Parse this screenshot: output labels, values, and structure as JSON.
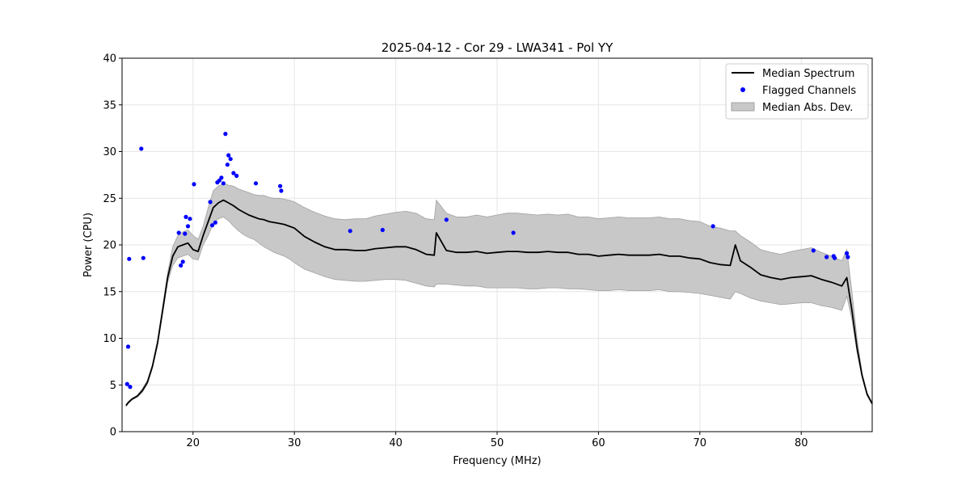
{
  "chart_data": {
    "type": "line",
    "title": "2025-04-12 - Cor 29 - LWA341 - Pol YY",
    "xlabel": "Frequency (MHz)",
    "ylabel": "Power (CPU)",
    "xlim": [
      13,
      87
    ],
    "ylim": [
      0,
      40
    ],
    "xticks": [
      20,
      30,
      40,
      50,
      60,
      70,
      80
    ],
    "yticks": [
      0,
      5,
      10,
      15,
      20,
      25,
      30,
      35,
      40
    ],
    "grid": true,
    "legend_position": "top-right",
    "colors": {
      "median": "#000000",
      "flagged": "#0000ff",
      "mad_fill": "#c8c8c8",
      "mad_edge": "#a0a0a0",
      "grid": "#e6e6e6"
    },
    "series": [
      {
        "name": "Median Spectrum",
        "style": "line",
        "x": [
          13.4,
          13.6,
          13.8,
          14.0,
          14.5,
          15.0,
          15.5,
          16.0,
          16.5,
          17.0,
          17.5,
          18.0,
          18.5,
          19.0,
          19.5,
          20.0,
          20.5,
          21.0,
          21.5,
          22.0,
          22.5,
          23.0,
          23.5,
          24.0,
          24.5,
          25.0,
          25.5,
          26.0,
          26.5,
          27.0,
          27.5,
          28.0,
          28.5,
          29.0,
          29.5,
          30.0,
          31.0,
          32.0,
          33.0,
          34.0,
          35.0,
          36.0,
          37.0,
          38.0,
          39.0,
          40.0,
          41.0,
          42.0,
          43.0,
          43.8,
          44.0,
          45.0,
          46.0,
          47.0,
          48.0,
          49.0,
          50.0,
          51.0,
          52.0,
          53.0,
          54.0,
          55.0,
          56.0,
          57.0,
          58.0,
          59.0,
          60.0,
          61.0,
          62.0,
          63.0,
          64.0,
          65.0,
          66.0,
          67.0,
          68.0,
          69.0,
          70.0,
          71.0,
          72.0,
          73.0,
          73.5,
          74.0,
          75.0,
          76.0,
          77.0,
          78.0,
          79.0,
          80.0,
          81.0,
          82.0,
          83.0,
          84.0,
          84.5,
          85.0,
          85.5,
          86.0,
          86.5,
          87.0
        ],
        "y": [
          2.8,
          3.1,
          3.3,
          3.5,
          3.8,
          4.4,
          5.3,
          7.0,
          9.5,
          13.0,
          16.5,
          18.8,
          19.8,
          20.0,
          20.2,
          19.5,
          19.3,
          21.0,
          22.5,
          24.0,
          24.5,
          24.8,
          24.5,
          24.2,
          23.8,
          23.5,
          23.2,
          23.0,
          22.8,
          22.7,
          22.5,
          22.4,
          22.3,
          22.2,
          22.0,
          21.8,
          20.9,
          20.3,
          19.8,
          19.5,
          19.5,
          19.4,
          19.4,
          19.6,
          19.7,
          19.8,
          19.8,
          19.5,
          19.0,
          18.9,
          21.3,
          19.4,
          19.2,
          19.2,
          19.3,
          19.1,
          19.2,
          19.3,
          19.3,
          19.2,
          19.2,
          19.3,
          19.2,
          19.2,
          19.0,
          19.0,
          18.8,
          18.9,
          19.0,
          18.9,
          18.9,
          18.9,
          19.0,
          18.8,
          18.8,
          18.6,
          18.5,
          18.1,
          17.9,
          17.8,
          20.0,
          18.3,
          17.6,
          16.8,
          16.5,
          16.3,
          16.5,
          16.6,
          16.7,
          16.3,
          16.0,
          15.6,
          16.5,
          13.0,
          9.0,
          6.0,
          4.0,
          3.0
        ]
      },
      {
        "name": "Median Abs. Dev.",
        "style": "band",
        "x": [
          13.4,
          13.6,
          13.8,
          14.0,
          14.5,
          15.0,
          15.5,
          16.0,
          16.5,
          17.0,
          17.5,
          18.0,
          18.5,
          19.0,
          19.5,
          20.0,
          20.5,
          21.0,
          21.5,
          22.0,
          22.5,
          23.0,
          23.5,
          24.0,
          24.5,
          25.0,
          25.5,
          26.0,
          26.5,
          27.0,
          27.5,
          28.0,
          28.5,
          29.0,
          29.5,
          30.0,
          31.0,
          32.0,
          33.0,
          34.0,
          35.0,
          36.0,
          37.0,
          38.0,
          39.0,
          40.0,
          41.0,
          42.0,
          43.0,
          43.8,
          44.0,
          45.0,
          46.0,
          47.0,
          48.0,
          49.0,
          50.0,
          51.0,
          52.0,
          53.0,
          54.0,
          55.0,
          56.0,
          57.0,
          58.0,
          59.0,
          60.0,
          61.0,
          62.0,
          63.0,
          64.0,
          65.0,
          66.0,
          67.0,
          68.0,
          69.0,
          70.0,
          71.0,
          72.0,
          73.0,
          73.5,
          74.0,
          75.0,
          76.0,
          77.0,
          78.0,
          79.0,
          80.0,
          81.0,
          82.0,
          83.0,
          84.0,
          84.5,
          85.0,
          85.5,
          86.0,
          86.5,
          87.0
        ],
        "lower": [
          2.7,
          3.0,
          3.2,
          3.4,
          3.7,
          4.2,
          5.1,
          6.8,
          9.2,
          12.6,
          16.0,
          17.8,
          18.6,
          18.8,
          19.0,
          18.5,
          18.4,
          20.0,
          21.0,
          22.3,
          22.8,
          23.0,
          22.6,
          22.0,
          21.5,
          21.1,
          20.8,
          20.6,
          20.2,
          19.8,
          19.5,
          19.2,
          19.0,
          18.8,
          18.5,
          18.1,
          17.4,
          17.0,
          16.6,
          16.3,
          16.2,
          16.1,
          16.1,
          16.2,
          16.3,
          16.3,
          16.2,
          15.9,
          15.6,
          15.5,
          15.8,
          15.8,
          15.7,
          15.6,
          15.6,
          15.4,
          15.4,
          15.4,
          15.4,
          15.3,
          15.3,
          15.4,
          15.4,
          15.3,
          15.3,
          15.2,
          15.1,
          15.1,
          15.2,
          15.1,
          15.1,
          15.1,
          15.2,
          15.0,
          15.0,
          14.9,
          14.8,
          14.6,
          14.4,
          14.2,
          15.0,
          14.8,
          14.3,
          14.0,
          13.8,
          13.6,
          13.7,
          13.8,
          13.8,
          13.5,
          13.3,
          13.0,
          14.5,
          12.0,
          8.5,
          5.8,
          3.9,
          2.9
        ],
        "upper": [
          2.9,
          3.2,
          3.4,
          3.6,
          3.9,
          4.6,
          5.5,
          7.2,
          9.8,
          13.4,
          17.0,
          19.8,
          21.0,
          21.4,
          21.6,
          21.0,
          20.6,
          22.0,
          24.0,
          25.8,
          26.3,
          26.6,
          26.4,
          26.3,
          26.0,
          25.8,
          25.6,
          25.4,
          25.3,
          25.3,
          25.1,
          25.0,
          25.0,
          24.9,
          24.8,
          24.6,
          24.0,
          23.5,
          23.1,
          22.8,
          22.7,
          22.8,
          22.8,
          23.1,
          23.3,
          23.5,
          23.6,
          23.4,
          22.8,
          22.7,
          24.8,
          23.4,
          23.0,
          23.0,
          23.2,
          23.0,
          23.2,
          23.4,
          23.4,
          23.3,
          23.2,
          23.3,
          23.2,
          23.3,
          23.0,
          23.0,
          22.8,
          22.9,
          23.0,
          22.9,
          22.9,
          22.9,
          23.0,
          22.8,
          22.8,
          22.6,
          22.5,
          22.0,
          21.8,
          21.5,
          21.5,
          21.0,
          20.3,
          19.5,
          19.2,
          19.0,
          19.3,
          19.5,
          19.7,
          19.2,
          18.8,
          18.3,
          19.5,
          15.0,
          10.0,
          6.3,
          4.2,
          3.1
        ]
      },
      {
        "name": "Flagged Channels",
        "style": "scatter",
        "x": [
          13.5,
          13.6,
          13.7,
          13.8,
          14.9,
          15.1,
          18.6,
          18.8,
          19.0,
          19.2,
          19.3,
          19.5,
          19.7,
          20.1,
          21.7,
          21.9,
          22.2,
          22.4,
          22.6,
          22.8,
          23.0,
          23.2,
          23.4,
          23.5,
          23.7,
          24.0,
          24.3,
          26.2,
          28.6,
          28.7,
          35.5,
          38.7,
          45.0,
          51.6,
          71.3,
          81.2,
          82.5,
          83.2,
          83.3,
          84.5,
          84.6
        ],
        "y": [
          5.1,
          9.1,
          18.5,
          4.8,
          30.3,
          18.6,
          21.3,
          17.8,
          18.2,
          21.2,
          23.0,
          22.0,
          22.8,
          26.5,
          24.6,
          22.1,
          22.4,
          26.7,
          26.9,
          27.2,
          26.6,
          31.9,
          28.6,
          29.6,
          29.2,
          27.7,
          27.4,
          26.6,
          26.3,
          25.8,
          21.5,
          21.6,
          22.7,
          21.3,
          22.0,
          19.4,
          18.7,
          18.8,
          18.6,
          19.1,
          18.7
        ]
      }
    ],
    "legend": [
      "Median Spectrum",
      "Flagged Channels",
      "Median Abs. Dev."
    ]
  }
}
